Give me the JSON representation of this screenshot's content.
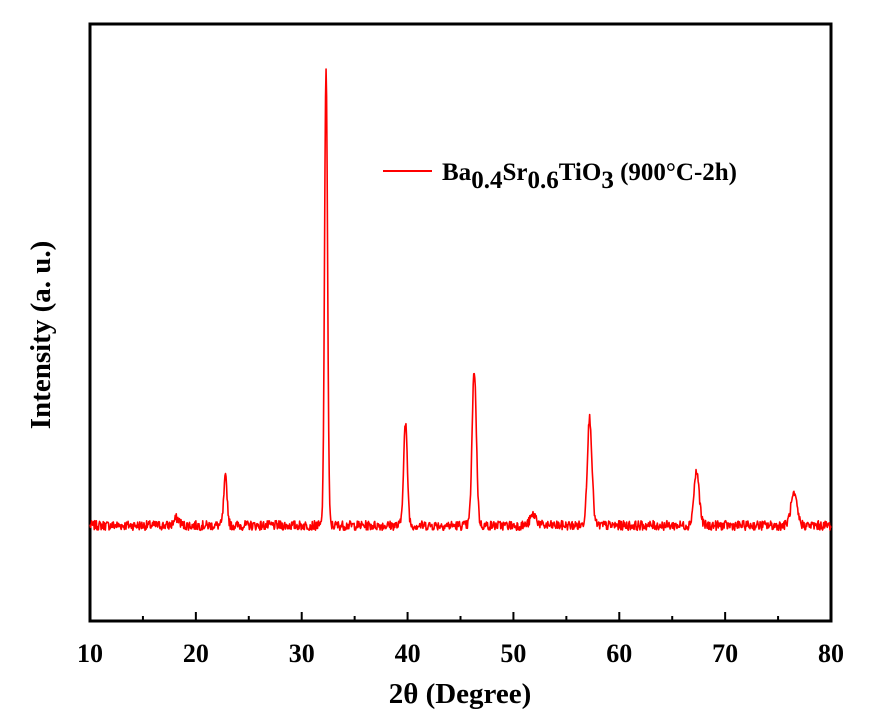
{
  "chart_data": {
    "type": "line",
    "xlabel": "2θ (Degree)",
    "ylabel": "Intensity (a. u.)",
    "xlim": [
      10,
      80
    ],
    "ylim": [
      0,
      1
    ],
    "y_ticks_shown": false,
    "grid": false,
    "legend_placement": "top-right",
    "x_ticks": [
      10,
      20,
      30,
      40,
      50,
      60,
      70,
      80
    ],
    "x_tick_labels": [
      "10",
      "20",
      "30",
      "40",
      "50",
      "60",
      "70",
      "80"
    ],
    "series": [
      {
        "name": "Ba0.4Sr0.6TiO3 (900°C-2h)",
        "legend": {
          "part1": "Ba",
          "sub1": "0.4",
          "part2": "Sr",
          "sub2": "0.6",
          "part3": "TiO",
          "sub3": "3",
          "part4": " (900°C-2h)"
        },
        "color": "#ff0000",
        "baseline": 0.16,
        "noise": 0.008,
        "peaks": [
          {
            "x": 18.2,
            "height": 0.012,
            "width": 0.25
          },
          {
            "x": 22.8,
            "height": 0.08,
            "width": 0.16
          },
          {
            "x": 32.3,
            "height": 0.77,
            "width": 0.14
          },
          {
            "x": 39.8,
            "height": 0.17,
            "width": 0.18
          },
          {
            "x": 46.3,
            "height": 0.26,
            "width": 0.2
          },
          {
            "x": 51.9,
            "height": 0.018,
            "width": 0.3
          },
          {
            "x": 57.2,
            "height": 0.18,
            "width": 0.22
          },
          {
            "x": 67.3,
            "height": 0.09,
            "width": 0.25
          },
          {
            "x": 76.5,
            "height": 0.05,
            "width": 0.3
          }
        ]
      }
    ]
  }
}
